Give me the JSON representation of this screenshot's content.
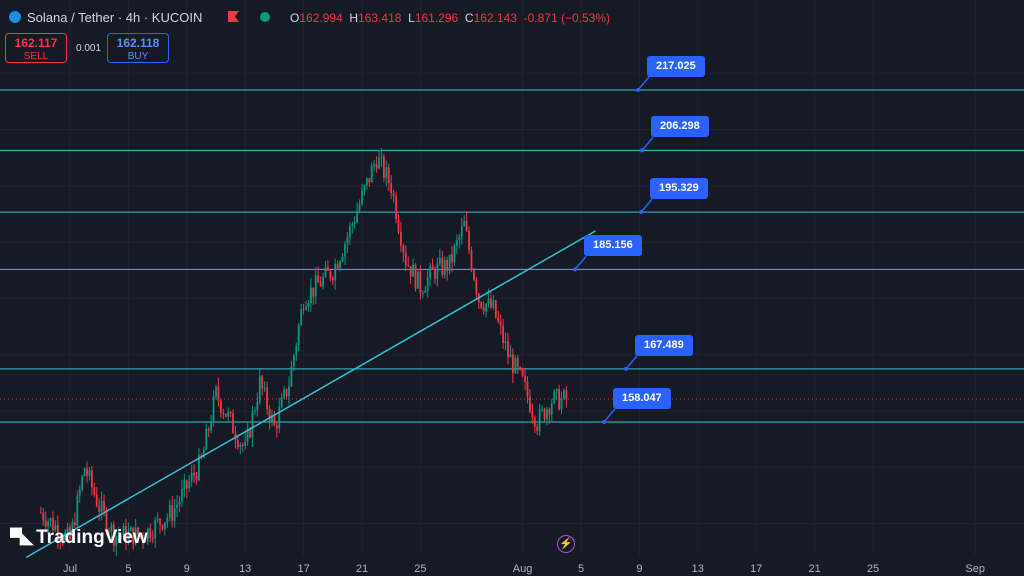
{
  "header": {
    "symbol_title": "Solana / Tether · 4h · KUCOIN",
    "open_label": "O",
    "open": "162.994",
    "high_label": "H",
    "high": "163.418",
    "low_label": "L",
    "low": "161.296",
    "close_label": "C",
    "close": "162.143",
    "change": "-0.871 (−0.53%)",
    "flag_color": "#f23645",
    "status_color": "#089981"
  },
  "trade": {
    "sell_price": "162.117",
    "sell_label": "SELL",
    "spread": "0.001",
    "buy_price": "162.118",
    "buy_label": "BUY"
  },
  "branding": {
    "logo_text": "TradingView"
  },
  "icons": {
    "symbol": "solana-logo-icon",
    "flag": "flag-icon",
    "status": "market-status-dot-icon",
    "bolt": "lightning-icon"
  },
  "chart_data": {
    "type": "candlestick",
    "title": "",
    "xlabel": "",
    "ylabel": "",
    "x_ticks": [
      "Jul",
      "5",
      "9",
      "13",
      "17",
      "21",
      "25",
      "Aug",
      "5",
      "9",
      "13",
      "17",
      "21",
      "25",
      "Sep"
    ],
    "price_range": [
      132,
      227
    ],
    "current_price": 162.143,
    "horizontal_levels": [
      {
        "label": "217.025",
        "value": 217.025
      },
      {
        "label": "206.298",
        "value": 206.298
      },
      {
        "label": "195.329",
        "value": 195.329
      },
      {
        "label": "185.156",
        "value": 185.156
      },
      {
        "label": "167.489",
        "value": 167.489
      },
      {
        "label": "158.047",
        "value": 158.047
      }
    ],
    "trendline": {
      "from": {
        "date": "Jun 28",
        "price": 134
      },
      "to": {
        "date": "Aug 6",
        "price": 192
      }
    },
    "price_path": [
      [
        "Jun 29",
        142
      ],
      [
        "Jul 1",
        137
      ],
      [
        "Jul 2",
        150
      ],
      [
        "Jul 3",
        143
      ],
      [
        "Jul 4",
        138
      ],
      [
        "Jul 6",
        138
      ],
      [
        "Jul 8",
        142
      ],
      [
        "Jul 10",
        151
      ],
      [
        "Jul 11",
        163
      ],
      [
        "Jul 13",
        153
      ],
      [
        "Jul 14",
        165
      ],
      [
        "Jul 15",
        157
      ],
      [
        "Jul 16",
        165
      ],
      [
        "Jul 17",
        180
      ],
      [
        "Jul 19",
        185
      ],
      [
        "Jul 20",
        191
      ],
      [
        "Jul 22",
        205
      ],
      [
        "Jul 23",
        200
      ],
      [
        "Jul 24",
        187
      ],
      [
        "Jul 25",
        182
      ],
      [
        "Jul 26",
        185
      ],
      [
        "Jul 27",
        186
      ],
      [
        "Jul 28",
        193
      ],
      [
        "Jul 29",
        180
      ],
      [
        "Jul 30",
        178
      ],
      [
        "Jul 31",
        170
      ],
      [
        "Aug 1",
        165
      ],
      [
        "Aug 2",
        158
      ],
      [
        "Aug 3",
        162
      ],
      [
        "Aug 4",
        162
      ]
    ],
    "grid": true,
    "colors": {
      "up": "#089981",
      "down": "#f23645",
      "level_line": "#2ec4d6",
      "label_bg": "#2962ff",
      "background": "#161a25"
    }
  }
}
